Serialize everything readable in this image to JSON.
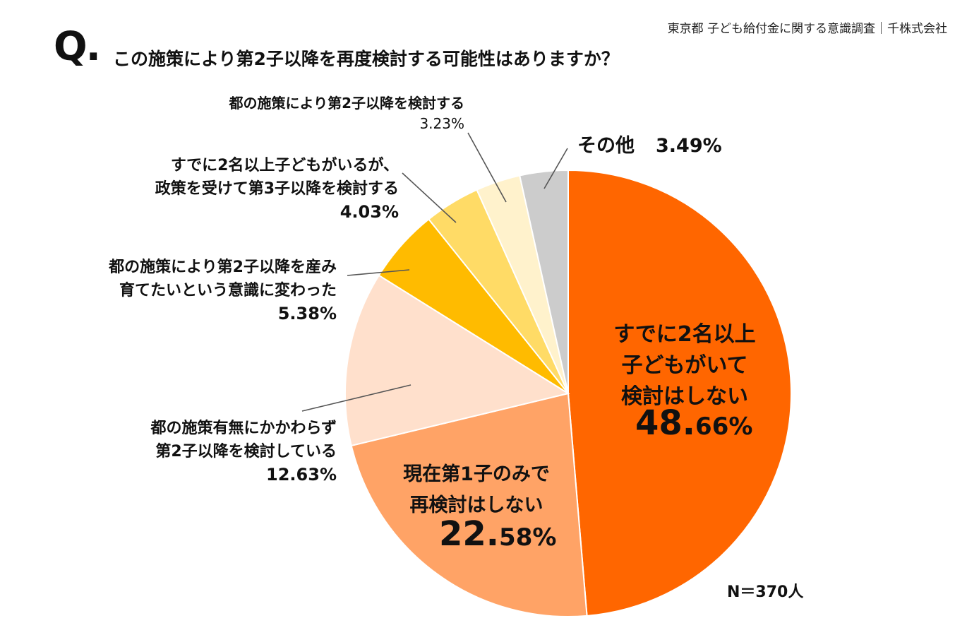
{
  "header": {
    "source": "東京都 子ども給付金に関する意識調査｜千株式会社",
    "q_mark": "Q.",
    "question": "この施策により第2子以降を再度検討する可能性はありますか？"
  },
  "sample_size": "N＝370人",
  "chart_data": {
    "type": "pie",
    "title": "この施策により第2子以降を再度検討する可能性はありますか？",
    "slices": [
      {
        "line1": "すでに2名以上",
        "line2": "子どもがいて",
        "line3": "検討はしない",
        "value": 48.66,
        "pct_main": "48.",
        "pct_rest": "66%",
        "color": "#ff6600"
      },
      {
        "line1": "現在第1子のみで",
        "line2": "再検討はしない",
        "value": 22.58,
        "pct_main": "22.",
        "pct_rest": "58%",
        "color": "#ffa366"
      },
      {
        "line1": "都の施策有無にかかわらず",
        "line2": "第2子以降を検討している",
        "value": 12.63,
        "pct": "12.63%",
        "color": "#ffe0cc"
      },
      {
        "line1": "都の施策により第2子以降を産み",
        "line2": "育てたいという意識に変わった",
        "value": 5.38,
        "pct": "5.38%",
        "color": "#ffbb00"
      },
      {
        "line1": "すでに2名以上子どもがいるが、",
        "line2": "政策を受けて第3子以降を検討する",
        "value": 4.03,
        "pct": "4.03%",
        "color": "#ffdb66"
      },
      {
        "line1": "都の施策により第2子以降を検討する",
        "value": 3.23,
        "pct": "3.23%",
        "color": "#fff2cc"
      },
      {
        "line1": "その他",
        "value": 3.49,
        "pct": "3.49%",
        "color": "#cccccc"
      }
    ]
  }
}
